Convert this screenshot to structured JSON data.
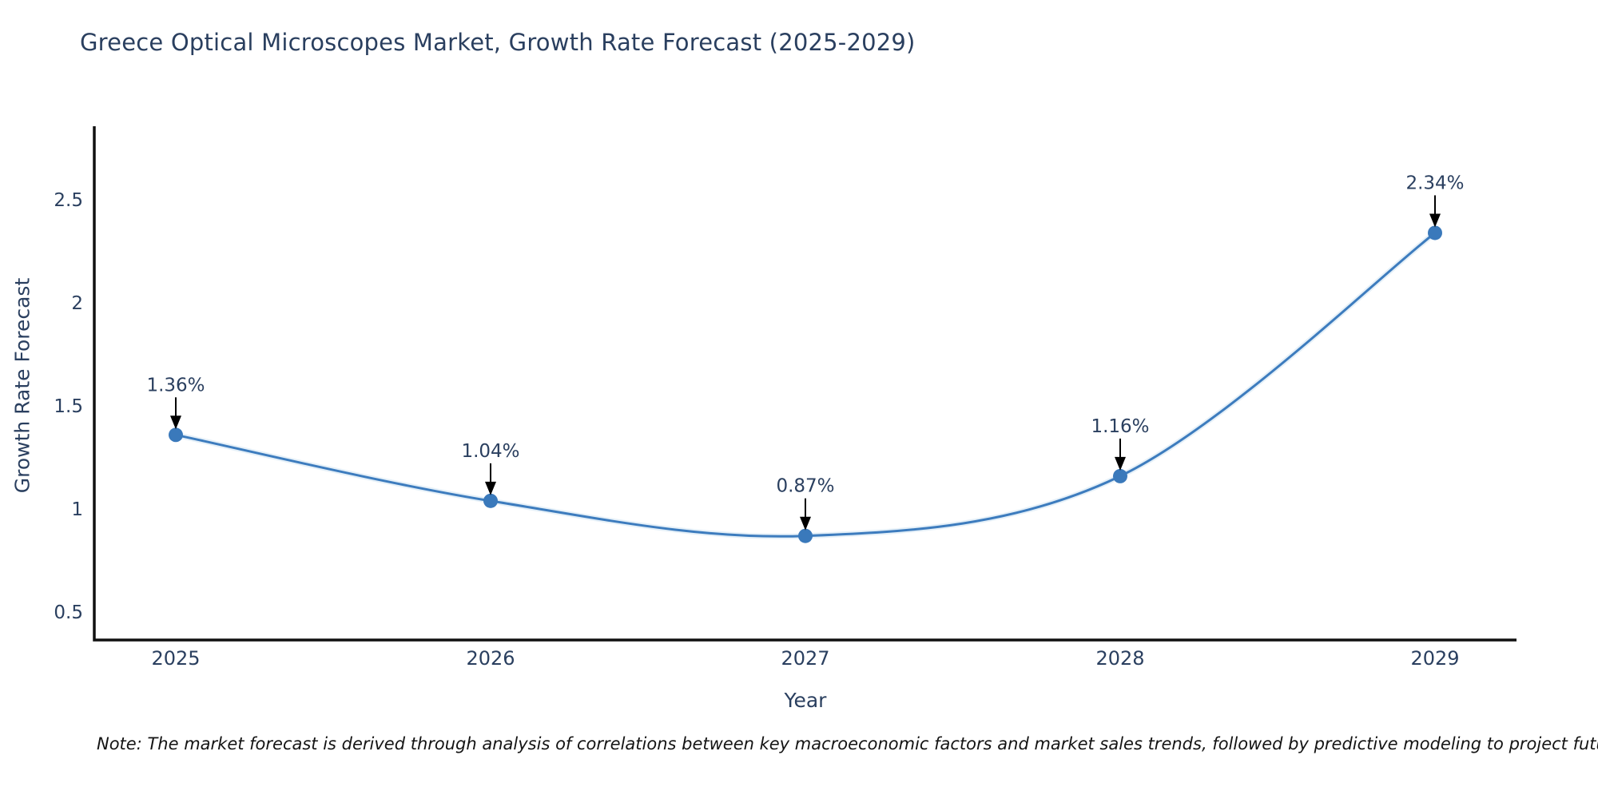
{
  "chart": {
    "title": "Greece Optical Microscopes Market, Growth Rate Forecast (2025-2029)",
    "xlabel": "Year",
    "ylabel": "Growth Rate Forecast",
    "note": "Note: The market forecast is derived through analysis of correlations between key macroeconomic factors and market sales trends, followed by predictive modeling to project future sales"
  },
  "chart_data": {
    "type": "line",
    "title": "Greece Optical Microscopes Market, Growth Rate Forecast (2025-2029)",
    "xlabel": "Year",
    "ylabel": "Growth Rate Forecast",
    "x": [
      2025,
      2026,
      2027,
      2028,
      2029
    ],
    "series": [
      {
        "name": "Growth Rate Forecast",
        "values": [
          1.36,
          1.04,
          0.87,
          1.16,
          2.34
        ]
      }
    ],
    "point_labels": [
      "1.36%",
      "1.04%",
      "0.87%",
      "1.16%",
      "2.34%"
    ],
    "yticks": [
      0.5,
      1.0,
      1.5,
      2.0,
      2.5
    ],
    "ylim": [
      0.365,
      2.85
    ],
    "grid": false,
    "legend": false,
    "line_shape": "spline",
    "marker": "circle",
    "annotation_arrows": true,
    "colors": {
      "line": "#3d7cbe",
      "line_glow": "#cfe3f3",
      "marker": "#3a79bb",
      "arrow": "#000000",
      "axis": "#111111",
      "title": "#2a3f5f",
      "tick": "#2a3f5f",
      "note": "#141414"
    }
  }
}
